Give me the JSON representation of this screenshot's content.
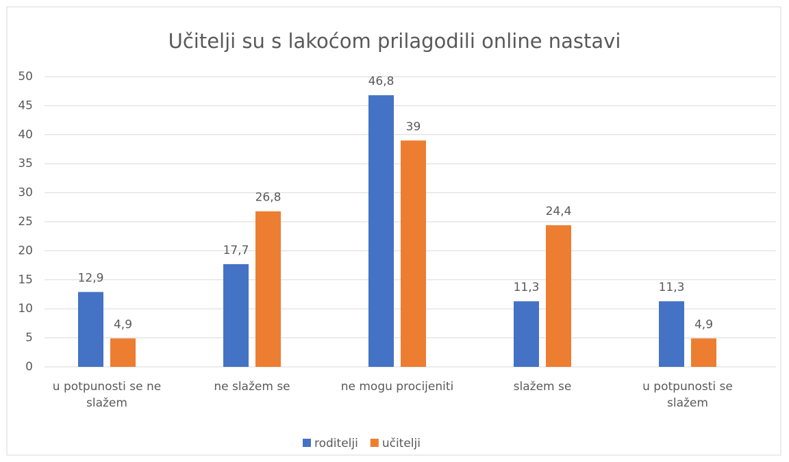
{
  "chart_data": {
    "type": "bar",
    "title": "Učitelji su s lakoćom prilagodili online nastavi",
    "categories": [
      "u potpunosti se ne slažem",
      "ne slažem se",
      "ne mogu procijeniti",
      "slažem se",
      "u potpunosti se slažem"
    ],
    "series": [
      {
        "name": "roditelji",
        "color": "#4472c4",
        "values": [
          12.9,
          17.7,
          46.8,
          11.3,
          11.3
        ],
        "value_labels": [
          "12,9",
          "17,7",
          "46,8",
          "11,3",
          "11,3"
        ]
      },
      {
        "name": "učitelji",
        "color": "#ed7d31",
        "values": [
          4.9,
          26.8,
          39,
          24.4,
          4.9
        ],
        "value_labels": [
          "4,9",
          "26,8",
          "39",
          "24,4",
          "4,9"
        ]
      }
    ],
    "ylim": [
      0,
      50
    ],
    "yticks": [
      0,
      5,
      10,
      15,
      20,
      25,
      30,
      35,
      40,
      45,
      50
    ],
    "grid": true,
    "legend": "bottom"
  }
}
